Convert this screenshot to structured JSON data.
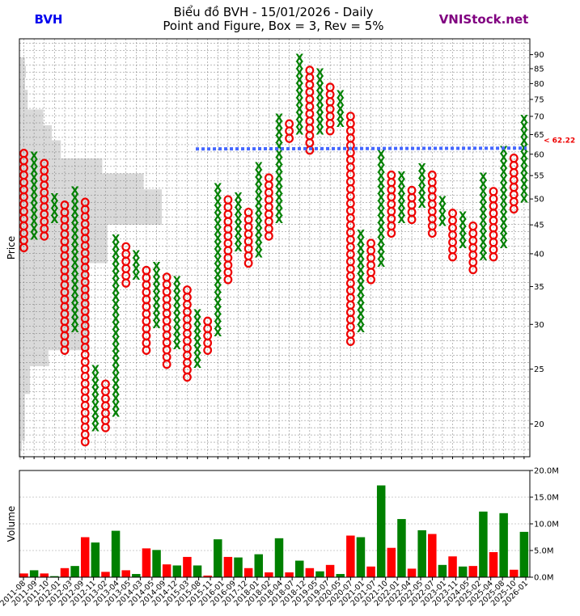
{
  "header": {
    "ticker": "BVH",
    "site": "VNIStock.net",
    "title_line1": "Biểu đồ BVH - 15/01/2026 - Daily",
    "title_line2": "Point and Figure, Box = 3, Rev = 5%"
  },
  "colors": {
    "x_mark": "#008000",
    "o_mark": "#ee0000",
    "ticker": "#0000ee",
    "site": "#800080",
    "trendline": "#4466ff",
    "last_price_label": "#ee0000",
    "volume_profile": "#d9d9d9"
  },
  "chart_data": [
    {
      "type": "point-and-figure",
      "ylabel": "Price",
      "y_scale": "log",
      "ylim": [
        17.5,
        96
      ],
      "y_ticks": [
        20,
        25,
        30,
        35,
        40,
        45,
        50,
        55,
        60,
        65,
        70,
        75,
        80,
        85,
        90
      ],
      "box_ratio": 1.03,
      "last_price": 62.22,
      "last_price_label": "< 62.22",
      "trendline": {
        "from_column": 17,
        "to_column": 24,
        "price": 61.3
      },
      "columns": [
        {
          "type": "O",
          "low": 41.0,
          "high": 61.0
        },
        {
          "type": "X",
          "low": 43.0,
          "high": 61.0
        },
        {
          "type": "O",
          "low": 43.0,
          "high": 59.0
        },
        {
          "type": "X",
          "low": 46.0,
          "high": 50.5
        },
        {
          "type": "O",
          "low": 27.0,
          "high": 49.0
        },
        {
          "type": "X",
          "low": 29.5,
          "high": 53.0
        },
        {
          "type": "O",
          "low": 18.6,
          "high": 50.5
        },
        {
          "type": "X",
          "low": 19.7,
          "high": 25.0
        },
        {
          "type": "O",
          "low": 19.7,
          "high": 24.2
        },
        {
          "type": "X",
          "low": 20.9,
          "high": 43.5
        },
        {
          "type": "O",
          "low": 35.5,
          "high": 42.0
        },
        {
          "type": "X",
          "low": 36.5,
          "high": 41.0
        },
        {
          "type": "O",
          "low": 27.0,
          "high": 38.0
        },
        {
          "type": "X",
          "low": 30.0,
          "high": 38.0
        },
        {
          "type": "O",
          "low": 25.5,
          "high": 36.5
        },
        {
          "type": "X",
          "low": 27.5,
          "high": 36.0
        },
        {
          "type": "O",
          "low": 24.2,
          "high": 35.0
        },
        {
          "type": "X",
          "low": 25.5,
          "high": 31.5
        },
        {
          "type": "O",
          "low": 27.0,
          "high": 30.5
        },
        {
          "type": "X",
          "low": 29.0,
          "high": 53.0
        },
        {
          "type": "O",
          "low": 36.0,
          "high": 50.0
        },
        {
          "type": "X",
          "low": 41.0,
          "high": 50.5
        },
        {
          "type": "O",
          "low": 38.5,
          "high": 48.0
        },
        {
          "type": "X",
          "low": 40.0,
          "high": 58.0
        },
        {
          "type": "O",
          "low": 43.0,
          "high": 56.0
        },
        {
          "type": "X",
          "low": 46.0,
          "high": 71.0
        },
        {
          "type": "O",
          "low": 64.0,
          "high": 69.0
        },
        {
          "type": "X",
          "low": 66.0,
          "high": 90.0
        },
        {
          "type": "O",
          "low": 61.0,
          "high": 85.0
        },
        {
          "type": "X",
          "low": 66.0,
          "high": 85.0
        },
        {
          "type": "O",
          "low": 66.0,
          "high": 81.0
        },
        {
          "type": "X",
          "low": 68.0,
          "high": 77.0
        },
        {
          "type": "O",
          "low": 28.0,
          "high": 71.0
        },
        {
          "type": "X",
          "low": 29.5,
          "high": 44.0
        },
        {
          "type": "O",
          "low": 36.0,
          "high": 42.0
        },
        {
          "type": "X",
          "low": 38.5,
          "high": 61.0
        },
        {
          "type": "O",
          "low": 43.5,
          "high": 56.0
        },
        {
          "type": "X",
          "low": 46.0,
          "high": 55.0
        },
        {
          "type": "O",
          "low": 46.0,
          "high": 53.0
        },
        {
          "type": "X",
          "low": 49.0,
          "high": 58.0
        },
        {
          "type": "O",
          "low": 43.5,
          "high": 56.0
        },
        {
          "type": "X",
          "low": 45.5,
          "high": 50.5
        },
        {
          "type": "O",
          "low": 39.5,
          "high": 48.0
        },
        {
          "type": "X",
          "low": 41.5,
          "high": 47.5
        },
        {
          "type": "O",
          "low": 37.5,
          "high": 46.0
        },
        {
          "type": "X",
          "low": 39.5,
          "high": 56.0
        },
        {
          "type": "O",
          "low": 39.5,
          "high": 53.0
        },
        {
          "type": "X",
          "low": 41.5,
          "high": 61.0
        },
        {
          "type": "O",
          "low": 48.0,
          "high": 59.0
        },
        {
          "type": "X",
          "low": 50.0,
          "high": 71.0
        }
      ],
      "volume_profile": [
        {
          "low": 17.3,
          "high": 17.9,
          "value": 0.6
        },
        {
          "low": 17.9,
          "high": 18.7,
          "value": 1.0
        },
        {
          "low": 18.7,
          "high": 22.6,
          "value": 2.1
        },
        {
          "low": 22.6,
          "high": 25.3,
          "value": 4.1
        },
        {
          "low": 25.3,
          "high": 26.0,
          "value": 11.5
        },
        {
          "low": 26.0,
          "high": 27.0,
          "value": 11.2
        },
        {
          "low": 27.0,
          "high": 36.0,
          "value": 27.0
        },
        {
          "low": 36.0,
          "high": 38.5,
          "value": 26.5
        },
        {
          "low": 38.5,
          "high": 45.0,
          "value": 34.0
        },
        {
          "low": 45.0,
          "high": 52.0,
          "value": 55.0
        },
        {
          "low": 52.0,
          "high": 55.5,
          "value": 48.0
        },
        {
          "low": 55.5,
          "high": 59.0,
          "value": 32.0
        },
        {
          "low": 59.0,
          "high": 63.5,
          "value": 16.0
        },
        {
          "low": 63.5,
          "high": 67.5,
          "value": 12.5
        },
        {
          "low": 67.5,
          "high": 72.0,
          "value": 9.2
        },
        {
          "low": 72.0,
          "high": 78.0,
          "value": 3.2
        },
        {
          "low": 78.0,
          "high": 82.0,
          "value": 2.2
        },
        {
          "low": 82.0,
          "high": 86.0,
          "value": 2.5
        },
        {
          "low": 86.0,
          "high": 89.0,
          "value": 2.1
        }
      ]
    },
    {
      "type": "bar",
      "ylabel": "Volume",
      "ylim": [
        0,
        20000000
      ],
      "y_ticks": [
        0,
        5000000,
        10000000,
        15000000,
        20000000
      ],
      "y_tick_labels": [
        "0.0M",
        "5.0M",
        "10.0M",
        "15.0M",
        "20.0M"
      ],
      "x_tick_labels": [
        "2011-08",
        "2011-09",
        "2011-10",
        "2012-01",
        "2012-03",
        "2012-09",
        "2012-11",
        "2013-02",
        "2013-04",
        "2013-05",
        "2014-03",
        "2014-05",
        "2014-09",
        "2014-12",
        "2015-03",
        "2015-08",
        "2015-11",
        "2016-01",
        "2016-09",
        "2017-12",
        "2018-01",
        "2018-02",
        "2018-04",
        "2018-07",
        "2018-12",
        "2019-05",
        "2019-07",
        "2020-05",
        "2020-07",
        "2021-01",
        "2021-07",
        "2021-10",
        "2022-01",
        "2022-04",
        "2022-05",
        "2022-07",
        "2023-01",
        "2023-11",
        "2024-05",
        "2025-02",
        "2025-04",
        "2025-08",
        "2025-10",
        "2026-01"
      ],
      "bars": [
        {
          "value": 700000,
          "color": "red"
        },
        {
          "value": 1300000,
          "color": "green"
        },
        {
          "value": 700000,
          "color": "red"
        },
        {
          "value": 200000,
          "color": "green"
        },
        {
          "value": 1700000,
          "color": "red"
        },
        {
          "value": 2100000,
          "color": "green"
        },
        {
          "value": 7500000,
          "color": "red"
        },
        {
          "value": 6500000,
          "color": "green"
        },
        {
          "value": 1000000,
          "color": "red"
        },
        {
          "value": 8700000,
          "color": "green"
        },
        {
          "value": 1300000,
          "color": "red"
        },
        {
          "value": 600000,
          "color": "green"
        },
        {
          "value": 5400000,
          "color": "red"
        },
        {
          "value": 5100000,
          "color": "green"
        },
        {
          "value": 2400000,
          "color": "red"
        },
        {
          "value": 2200000,
          "color": "green"
        },
        {
          "value": 3800000,
          "color": "red"
        },
        {
          "value": 2200000,
          "color": "green"
        },
        {
          "value": 300000,
          "color": "red"
        },
        {
          "value": 7100000,
          "color": "green"
        },
        {
          "value": 3800000,
          "color": "red"
        },
        {
          "value": 3700000,
          "color": "green"
        },
        {
          "value": 1700000,
          "color": "red"
        },
        {
          "value": 4300000,
          "color": "green"
        },
        {
          "value": 900000,
          "color": "red"
        },
        {
          "value": 7300000,
          "color": "green"
        },
        {
          "value": 900000,
          "color": "red"
        },
        {
          "value": 3100000,
          "color": "green"
        },
        {
          "value": 1700000,
          "color": "red"
        },
        {
          "value": 1100000,
          "color": "green"
        },
        {
          "value": 2300000,
          "color": "red"
        },
        {
          "value": 600000,
          "color": "green"
        },
        {
          "value": 7800000,
          "color": "red"
        },
        {
          "value": 7500000,
          "color": "green"
        },
        {
          "value": 2000000,
          "color": "red"
        },
        {
          "value": 17200000,
          "color": "green"
        },
        {
          "value": 5500000,
          "color": "red"
        },
        {
          "value": 10900000,
          "color": "green"
        },
        {
          "value": 1600000,
          "color": "red"
        },
        {
          "value": 8800000,
          "color": "green"
        },
        {
          "value": 8100000,
          "color": "red"
        },
        {
          "value": 2300000,
          "color": "green"
        },
        {
          "value": 3900000,
          "color": "red"
        },
        {
          "value": 2000000,
          "color": "green"
        },
        {
          "value": 2100000,
          "color": "red"
        },
        {
          "value": 12300000,
          "color": "green"
        },
        {
          "value": 4700000,
          "color": "red"
        },
        {
          "value": 12000000,
          "color": "green"
        },
        {
          "value": 1400000,
          "color": "red"
        },
        {
          "value": 8500000,
          "color": "green"
        }
      ]
    }
  ]
}
